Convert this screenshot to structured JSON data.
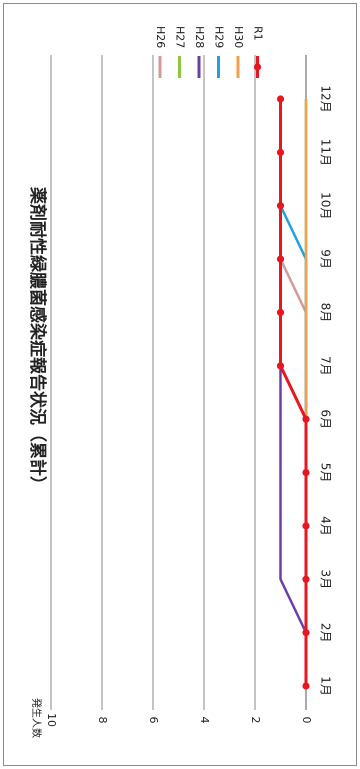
{
  "chart_data": {
    "type": "line",
    "orientation": "rotated 90° clockwise",
    "title": "薬剤耐性緑膿菌感染症報告状況（累計）",
    "ylabel": "発生人数",
    "xlabel": "",
    "categories": [
      "1月",
      "2月",
      "3月",
      "4月",
      "5月",
      "6月",
      "7月",
      "8月",
      "9月",
      "10月",
      "11月",
      "12月"
    ],
    "ylim": [
      0,
      10
    ],
    "yticks": [
      0,
      2,
      4,
      6,
      8,
      10
    ],
    "grid": true,
    "legend_position": "top-right",
    "series": [
      {
        "name": "H26",
        "color": "#d49a9a",
        "values": [
          0,
          0,
          0,
          0,
          0,
          0,
          0,
          0,
          1,
          1,
          1,
          1
        ]
      },
      {
        "name": "H27",
        "color": "#8cc63f",
        "values": [
          0,
          0,
          0,
          0,
          0,
          0,
          0,
          0,
          0,
          0,
          0,
          0
        ]
      },
      {
        "name": "H28",
        "color": "#6e3ea8",
        "values": [
          0,
          0,
          1,
          1,
          1,
          1,
          1,
          1,
          1,
          1,
          1,
          1
        ]
      },
      {
        "name": "H29",
        "color": "#1fa2e0",
        "values": [
          0,
          0,
          0,
          0,
          0,
          0,
          0,
          0,
          0,
          1,
          1,
          1
        ]
      },
      {
        "name": "H30",
        "color": "#f0a050",
        "values": [
          0,
          0,
          0,
          0,
          0,
          0,
          0,
          0,
          0,
          0,
          0,
          0
        ]
      },
      {
        "name": "R1",
        "color": "#e8161e",
        "values": [
          0,
          0,
          0,
          0,
          0,
          0,
          1,
          1,
          1,
          1,
          1,
          1
        ],
        "markers": true
      }
    ]
  }
}
